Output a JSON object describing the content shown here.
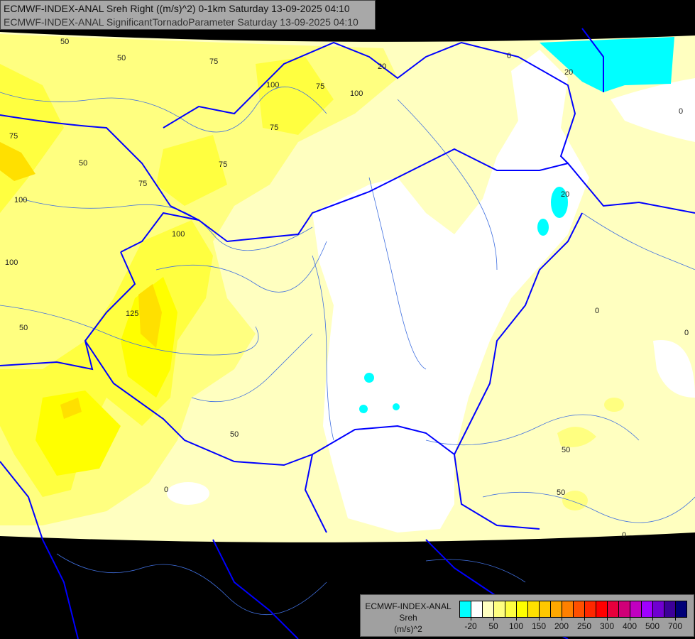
{
  "header": {
    "line1": "ECMWF-INDEX-ANAL Sreh Right ((m/s)^2) 0-1km Saturday 13-09-2025 04:10",
    "line2": "ECMWF-INDEX-ANAL SignificantTornadoParameter Saturday 13-09-2025 04:10"
  },
  "legend": {
    "model": "ECMWF-INDEX-ANAL",
    "variable": "Sreh",
    "unit": "(m/s)^2",
    "colors": [
      "#00ffff",
      "#ffffff",
      "#ffffc0",
      "#ffff80",
      "#ffff40",
      "#ffff00",
      "#ffe000",
      "#ffc800",
      "#ffa800",
      "#ff8000",
      "#ff5000",
      "#ff2800",
      "#ff0000",
      "#e8003c",
      "#d00078",
      "#c000c0",
      "#a000ff",
      "#7000d0",
      "#3c0098",
      "#000078"
    ],
    "tick_labels": [
      "-20",
      "50",
      "100",
      "150",
      "200",
      "250",
      "300",
      "400",
      "500",
      "700"
    ]
  },
  "map": {
    "border_color": "#0000ff",
    "river_color": "#4070e0",
    "contour_labels": [
      "50",
      "50",
      "75",
      "100",
      "75",
      "100",
      "20",
      "0",
      "20",
      "0",
      "75",
      "50",
      "75",
      "75",
      "75",
      "100",
      "20",
      "100",
      "100",
      "125",
      "50",
      "0",
      "0",
      "50",
      "50",
      "0",
      "50",
      "0"
    ]
  }
}
